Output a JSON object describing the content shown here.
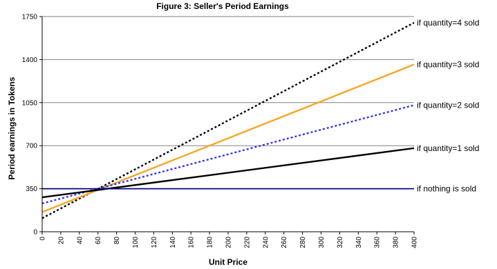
{
  "chart_data": {
    "type": "line",
    "title": "Figure 3: Seller's Period Earnings",
    "xlabel": "Unit Price",
    "ylabel": "Period earnings in Tokens",
    "xlim": [
      0,
      400
    ],
    "ylim": [
      0,
      1750
    ],
    "x_ticks": [
      "0",
      "20",
      "40",
      "60",
      "80",
      "100",
      "120",
      "140",
      "160",
      "180",
      "200",
      "220",
      "240",
      "260",
      "280",
      "300",
      "320",
      "340",
      "360",
      "380",
      "400"
    ],
    "y_ticks": [
      "0",
      "350",
      "700",
      "1050",
      "1400",
      "1750"
    ],
    "grid": "horizontal",
    "series": [
      {
        "name": "if quantity=4 sold",
        "color": "#000000",
        "style": "dotted",
        "x": [
          0,
          400
        ],
        "y": [
          110,
          1700
        ]
      },
      {
        "name": "if quantity=3 sold",
        "color": "#F5A623",
        "style": "solid",
        "x": [
          0,
          400
        ],
        "y": [
          160,
          1360
        ]
      },
      {
        "name": "if quantity=2 sold",
        "color": "#3333FF",
        "style": "dotted",
        "x": [
          0,
          400
        ],
        "y": [
          230,
          1030
        ]
      },
      {
        "name": "if quantity=1 sold",
        "color": "#000000",
        "style": "solid",
        "x": [
          0,
          400
        ],
        "y": [
          280,
          680
        ]
      },
      {
        "name": "if nothing is sold",
        "color": "#000080",
        "style": "solid",
        "x": [
          0,
          400
        ],
        "y": [
          350,
          350
        ]
      }
    ]
  }
}
